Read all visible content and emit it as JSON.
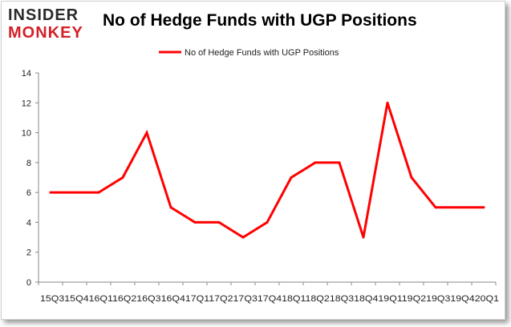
{
  "logo": {
    "line1": "INSIDER",
    "line2": "MONKEY"
  },
  "chart_data": {
    "type": "line",
    "title": "No of Hedge Funds with UGP Positions",
    "xlabel": "",
    "ylabel": "",
    "ylim": [
      0,
      14
    ],
    "yticks": [
      0,
      2,
      4,
      6,
      8,
      10,
      12,
      14
    ],
    "grid": false,
    "legend_position": "top-center",
    "x_tick_label": "15Q315Q416Q116Q216Q316Q417Q117Q217Q317Q418Q118Q218Q318Q419Q119Q219Q319Q420Q1",
    "categories": [
      "15Q3",
      "15Q4",
      "16Q1",
      "16Q2",
      "16Q3",
      "16Q4",
      "17Q1",
      "17Q2",
      "17Q3",
      "17Q4",
      "18Q1",
      "18Q2",
      "18Q3",
      "18Q4",
      "19Q1",
      "19Q2",
      "19Q3",
      "19Q4",
      "20Q1"
    ],
    "series": [
      {
        "name": "No of Hedge Funds with UGP Positions",
        "color": "#ff0000",
        "values": [
          6,
          6,
          6,
          7,
          10,
          5,
          4,
          4,
          3,
          4,
          7,
          8,
          8,
          3,
          12,
          7,
          5,
          5,
          5
        ]
      }
    ]
  }
}
